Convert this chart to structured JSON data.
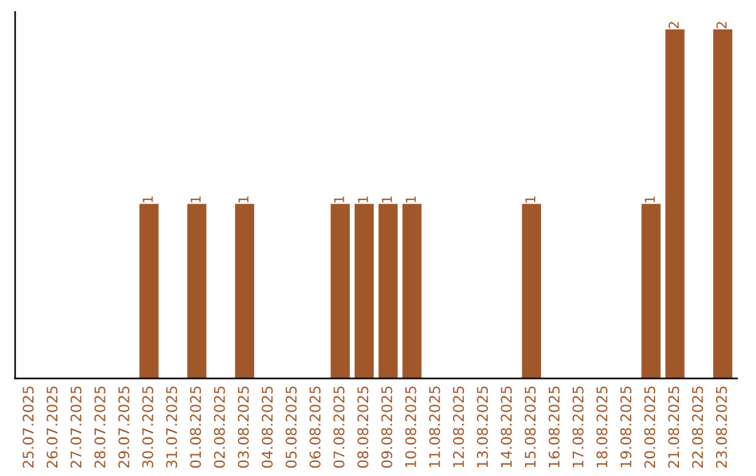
{
  "chart_data": {
    "type": "bar",
    "categories": [
      "25.07.2025",
      "26.07.2025",
      "27.07.2025",
      "28.07.2025",
      "29.07.2025",
      "30.07.2025",
      "31.07.2025",
      "01.08.2025",
      "02.08.2025",
      "03.08.2025",
      "04.08.2025",
      "05.08.2025",
      "06.08.2025",
      "07.08.2025",
      "08.08.2025",
      "09.08.2025",
      "10.08.2025",
      "11.08.2025",
      "12.08.2025",
      "13.08.2025",
      "14.08.2025",
      "15.08.2025",
      "16.08.2025",
      "17.08.2025",
      "18.08.2025",
      "19.08.2025",
      "20.08.2025",
      "21.08.2025",
      "22.08.2025",
      "23.08.2025"
    ],
    "values": [
      0,
      0,
      0,
      0,
      0,
      1,
      0,
      1,
      0,
      1,
      0,
      0,
      0,
      1,
      1,
      1,
      1,
      0,
      0,
      0,
      0,
      1,
      0,
      0,
      0,
      0,
      1,
      2,
      0,
      2
    ],
    "value_labels": [
      null,
      null,
      null,
      null,
      null,
      "1",
      null,
      "1",
      null,
      "1",
      null,
      null,
      null,
      "1",
      "1",
      "1",
      "1",
      null,
      null,
      null,
      null,
      "1",
      null,
      null,
      null,
      null,
      "1",
      "2",
      null,
      "2"
    ],
    "color": "#a0582a",
    "tick_labels": "x",
    "grid": false
  }
}
